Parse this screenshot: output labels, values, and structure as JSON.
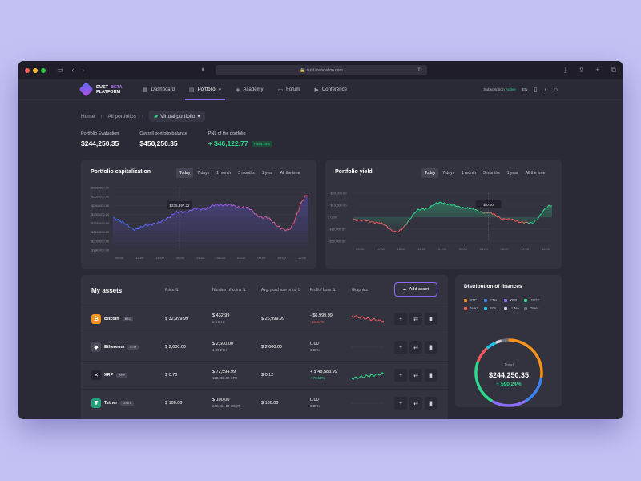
{
  "browser": {
    "url": "dust.foundation.com"
  },
  "logo": {
    "line1": "DUST",
    "line2": "PLATFORM",
    "badge": "BETA"
  },
  "nav": {
    "items": [
      {
        "label": "Dashboard",
        "icon": "grid-icon"
      },
      {
        "label": "Portfolio",
        "icon": "briefcase-icon"
      },
      {
        "label": "Academy",
        "icon": "graduation-cap-icon"
      },
      {
        "label": "Forum",
        "icon": "chat-icon"
      },
      {
        "label": "Conference",
        "icon": "video-icon"
      }
    ],
    "subscription_label": "Subscription",
    "subscription_status": "Active",
    "language": "EN"
  },
  "breadcrumb": {
    "home": "Home",
    "all": "All portfolios",
    "current": "Virtual portfolio"
  },
  "stats": {
    "evaluation_label": "Portfolio Evaluation",
    "evaluation_value": "$244,250.35",
    "balance_label": "Overall portfolio balance",
    "balance_value": "$450,250.35",
    "pnl_label": "PNL of the portfolio",
    "pnl_value": "+ $46,122.77",
    "pnl_badge": "+ 590.24%"
  },
  "timeframes": [
    "Today",
    "7 days",
    "1 month",
    "3 months",
    "1 year",
    "All the time"
  ],
  "cap_chart": {
    "title": "Portfolio capitalization",
    "tooltip": "$235,397.22",
    "ylabels": [
      "$260,000.00",
      "$250,000.00",
      "$240,000.00",
      "$230,000.00",
      "$220,000.00",
      "$210,000.00",
      "$200,000.00",
      "$190,000.00"
    ],
    "xlabels": [
      "09:00",
      "12:00",
      "15:00",
      "18:00",
      "21:00",
      "00:00",
      "03:00",
      "06:00",
      "09:00",
      "12:00"
    ]
  },
  "yield_chart": {
    "title": "Portfolio yield",
    "tooltip": "$ 0.00",
    "ylabels": [
      "+ $20,000.00",
      "+ $10,000.00",
      "$ 0.00",
      "- $10,000.00",
      "- $20,000.00"
    ],
    "xlabels": [
      "09:00",
      "12:00",
      "15:00",
      "18:00",
      "21:00",
      "00:00",
      "03:00",
      "06:00",
      "09:00",
      "12:00"
    ]
  },
  "chart_data": [
    {
      "type": "line",
      "title": "Portfolio capitalization",
      "ylim": [
        190000,
        260000
      ],
      "x": [
        "09:00",
        "12:00",
        "15:00",
        "18:00",
        "21:00",
        "00:00",
        "03:00",
        "06:00",
        "09:00",
        "12:00"
      ],
      "values": [
        226000,
        214000,
        220000,
        232000,
        236000,
        241000,
        238000,
        226000,
        212000,
        252000
      ],
      "grid": true
    },
    {
      "type": "line",
      "title": "Portfolio yield",
      "ylim": [
        -20000,
        20000
      ],
      "x": [
        "09:00",
        "12:00",
        "15:00",
        "18:00",
        "21:00",
        "00:00",
        "03:00",
        "06:00",
        "09:00",
        "12:00"
      ],
      "values": [
        -2000,
        -4000,
        -12000,
        6000,
        12000,
        8000,
        4000,
        -2000,
        -5000,
        10000
      ],
      "grid": true
    },
    {
      "type": "pie",
      "title": "Distribution of finances",
      "categories": [
        "BTC",
        "ETH",
        "XRP",
        "USDT",
        "AVAX",
        "SOL",
        "LUNA",
        "Other"
      ],
      "values": [
        28,
        14,
        17,
        22,
        8,
        5,
        3,
        3
      ]
    }
  ],
  "assets": {
    "title": "My assets",
    "headers": {
      "price": "Price",
      "coins": "Number of coins",
      "avg": "Avg. purchase price",
      "pl": "Profit / Loss",
      "graphics": "Graphics"
    },
    "add_label": "Add asset",
    "rows": [
      {
        "name": "Bitcoin",
        "ticker": "BTC",
        "icon": "bitcoin-icon",
        "color": "#f7931a",
        "price": "$ 32,999.99",
        "coins_value": "$ 432.99",
        "coins_amount": "0.5 BTC",
        "avg": "$ 26,999.99",
        "pl": "- $6,999.99",
        "pl_pct": "- 28.53%",
        "trend": "down"
      },
      {
        "name": "Ethereum",
        "ticker": "ETH",
        "icon": "ethereum-icon",
        "color": "#4b4a5a",
        "price": "$ 2,600.00",
        "coins_value": "$ 2,600.00",
        "coins_amount": "1.00 ETH",
        "avg": "$ 2,600.00",
        "pl": "0.00",
        "pl_pct": "0.00%",
        "trend": "flat"
      },
      {
        "name": "XRP",
        "ticker": "XRP",
        "icon": "xrp-icon",
        "color": "#23222c",
        "price": "$ 0.70",
        "coins_value": "$ 72,594.99",
        "coins_amount": "123,200.00 XPR",
        "avg": "$ 0.12",
        "pl": "+ $ 48,583.99",
        "pl_pct": "+ 76.53%",
        "trend": "up"
      },
      {
        "name": "Tether",
        "ticker": "USDT",
        "icon": "tether-icon",
        "color": "#26a17b",
        "price": "$ 100.00",
        "coins_value": "$ 100.00",
        "coins_amount": "240,434.00 USDT",
        "avg": "$ 100.00",
        "pl": "0.00",
        "pl_pct": "0.00%",
        "trend": "flat"
      }
    ]
  },
  "distribution": {
    "title": "Distribution of finances",
    "legend": [
      {
        "name": "BTC",
        "color": "#f7931a"
      },
      {
        "name": "ETH",
        "color": "#3b82f6"
      },
      {
        "name": "XRP",
        "color": "#8b6cf5"
      },
      {
        "name": "USDT",
        "color": "#2ed98c"
      },
      {
        "name": "AVAX",
        "color": "#ef5a5a"
      },
      {
        "name": "SOL",
        "color": "#22c3e6"
      },
      {
        "name": "LUNA",
        "color": "#cfcfda"
      },
      {
        "name": "Other",
        "color": "#6f6e7c"
      }
    ],
    "total_label": "Total",
    "total_value": "$244,250.35",
    "total_pct": "+ 590.24%"
  }
}
